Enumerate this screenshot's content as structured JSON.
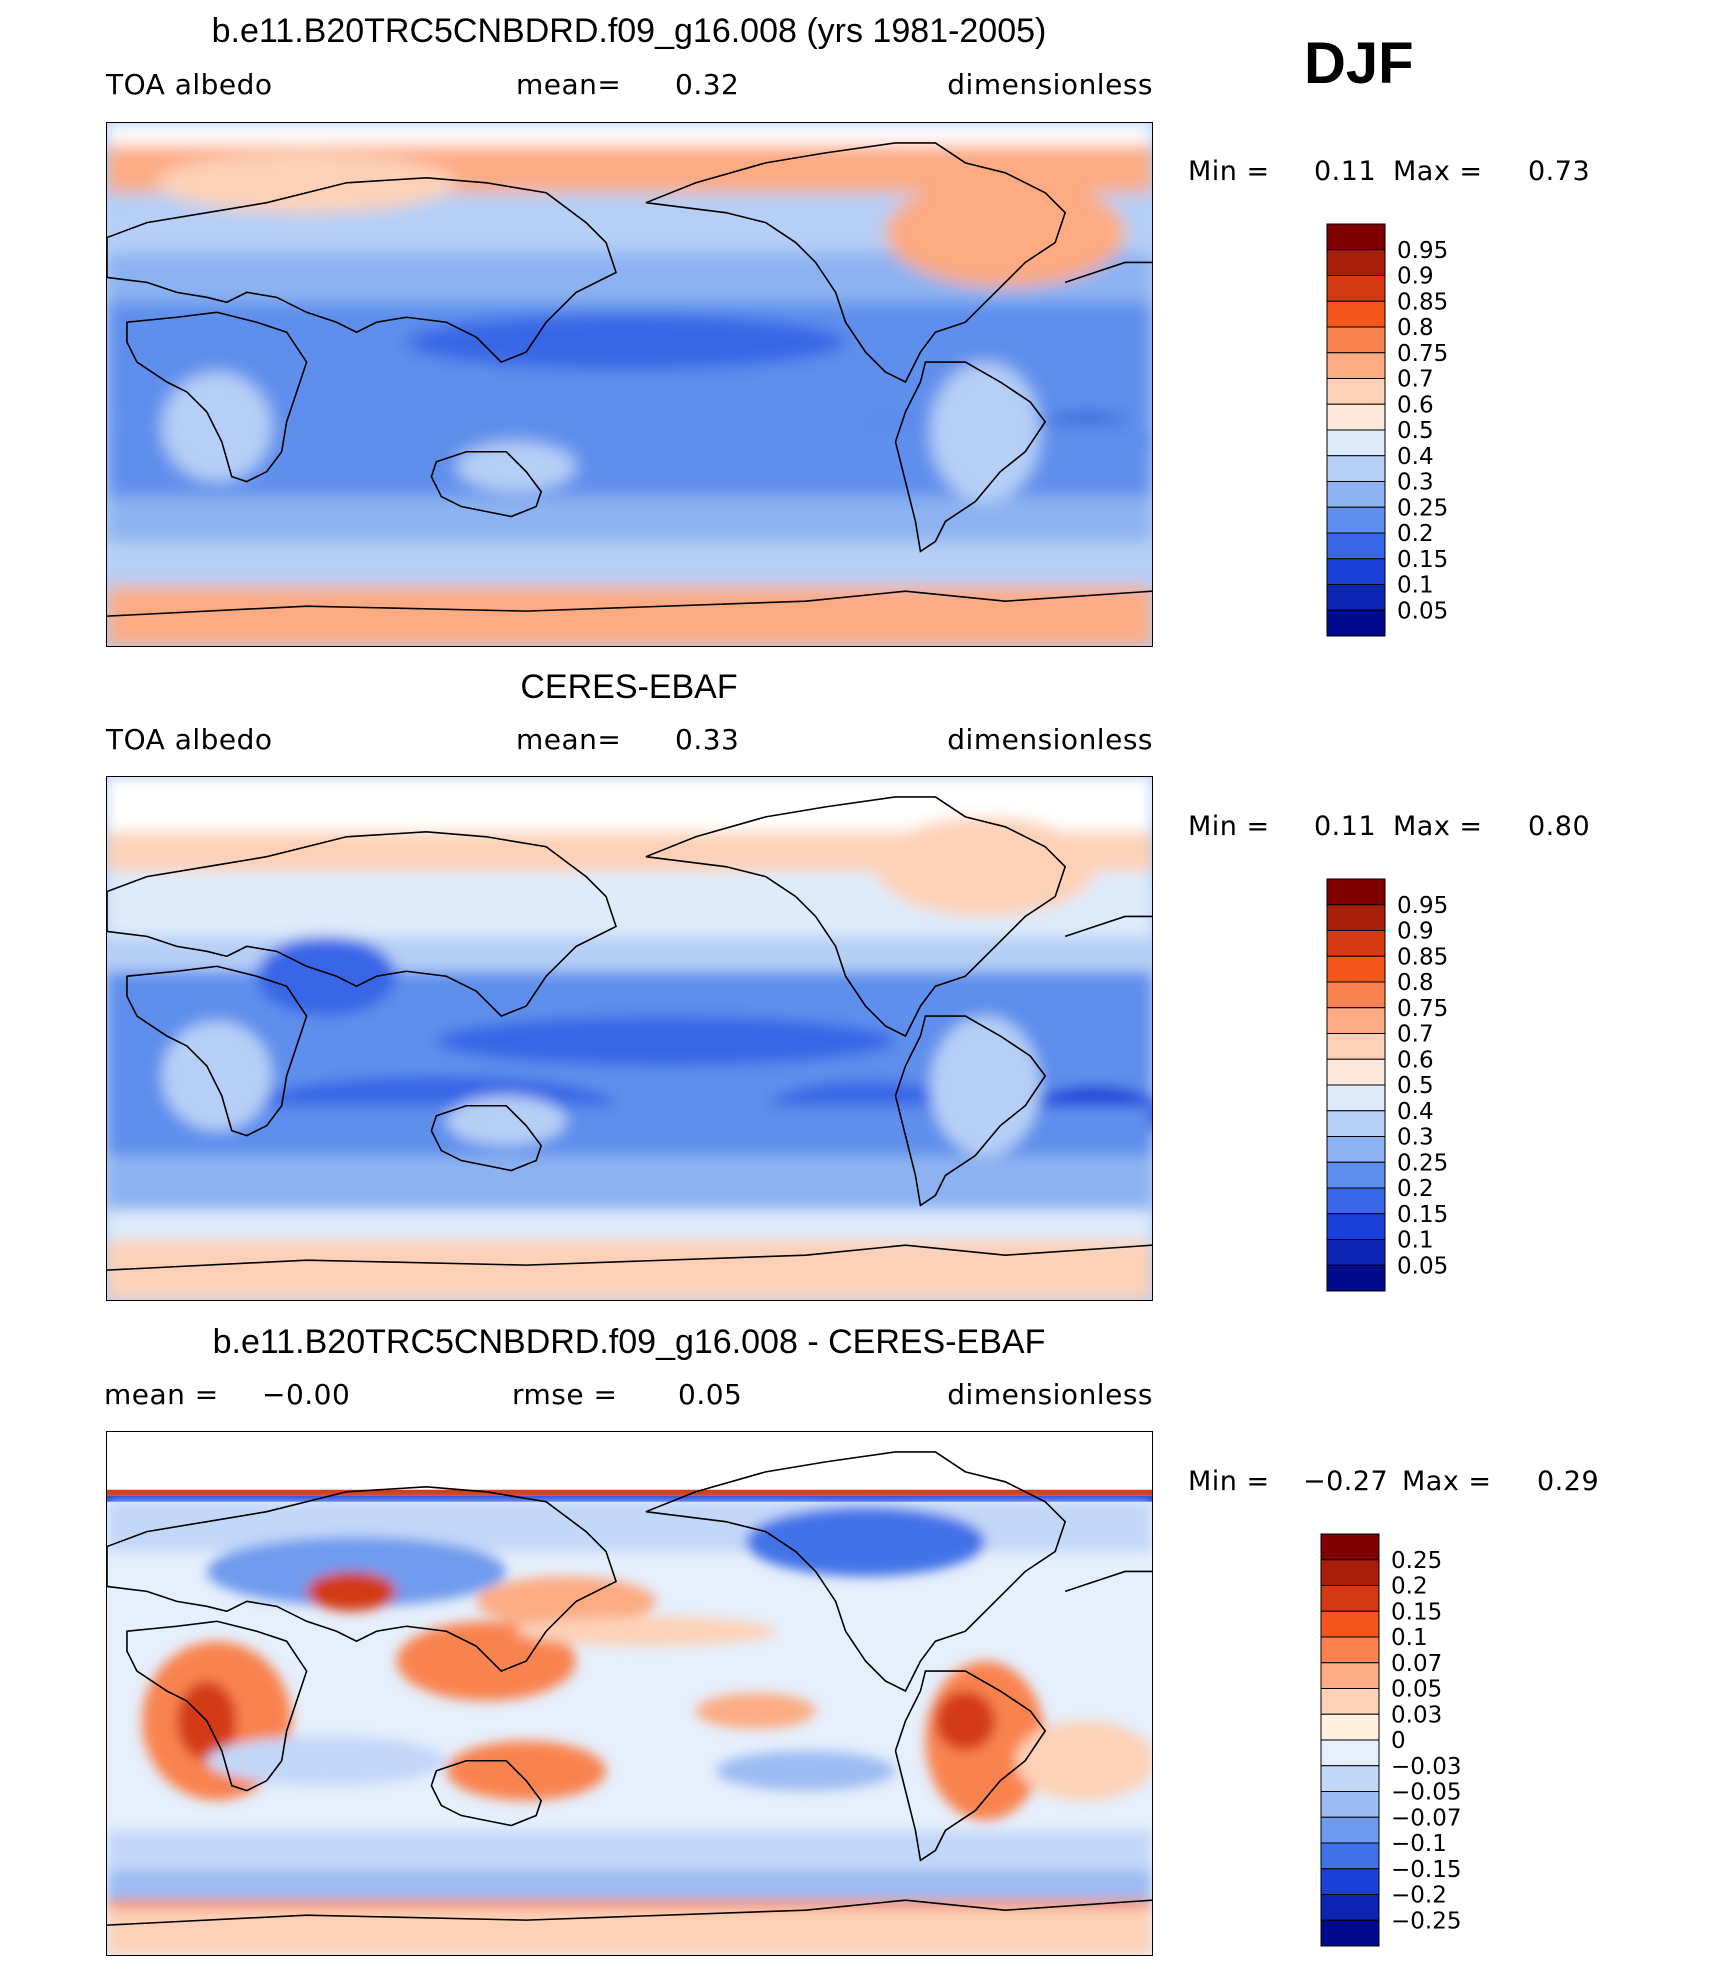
{
  "season_label": "DJF",
  "panels": [
    {
      "id": "model",
      "title": "b.e11.B20TRC5CNBDRD.f09_g16.008 (yrs 1981-2005)",
      "left_label": "TOA albedo",
      "center_label": "mean=",
      "center_value": "0.32",
      "right_label": "dimensionless",
      "min_label": "Min =",
      "min_value": "0.11",
      "max_label": "Max =",
      "max_value": "0.73",
      "colorbar": {
        "ticks": [
          "0.95",
          "0.9",
          "0.85",
          "0.8",
          "0.75",
          "0.7",
          "0.6",
          "0.5",
          "0.4",
          "0.3",
          "0.25",
          "0.2",
          "0.15",
          "0.1",
          "0.05"
        ],
        "colors": [
          "#7f0000",
          "#a81e0a",
          "#d33a12",
          "#f2561a",
          "#f98350",
          "#fcab83",
          "#fdd1b7",
          "#fde9dc",
          "#deebfb",
          "#b6cff6",
          "#8cb2f1",
          "#5e8fec",
          "#3866e6",
          "#1a40d8",
          "#0c24b4",
          "#000a8c"
        ]
      }
    },
    {
      "id": "obs",
      "title": "CERES-EBAF",
      "left_label": "TOA albedo",
      "center_label": "mean=",
      "center_value": "0.33",
      "right_label": "dimensionless",
      "min_label": "Min =",
      "min_value": "0.11",
      "max_label": "Max =",
      "max_value": "0.80",
      "colorbar": {
        "ticks": [
          "0.95",
          "0.9",
          "0.85",
          "0.8",
          "0.75",
          "0.7",
          "0.6",
          "0.5",
          "0.4",
          "0.3",
          "0.25",
          "0.2",
          "0.15",
          "0.1",
          "0.05"
        ],
        "colors": [
          "#7f0000",
          "#a81e0a",
          "#d33a12",
          "#f2561a",
          "#f98350",
          "#fcab83",
          "#fdd1b7",
          "#fde9dc",
          "#deebfb",
          "#b6cff6",
          "#8cb2f1",
          "#5e8fec",
          "#3866e6",
          "#1a40d8",
          "#0c24b4",
          "#000a8c"
        ]
      }
    },
    {
      "id": "diff",
      "title": "b.e11.B20TRC5CNBDRD.f09_g16.008 - CERES-EBAF",
      "left_label": "mean =",
      "left_value": "−0.00",
      "center_label": "rmse =",
      "center_value": "0.05",
      "right_label": "dimensionless",
      "min_label": "Min =",
      "min_value": "−0.27",
      "max_label": "Max =",
      "max_value": "0.29",
      "colorbar": {
        "ticks": [
          "0.25",
          "0.2",
          "0.15",
          "0.1",
          "0.07",
          "0.05",
          "0.03",
          "0",
          "−0.03",
          "−0.05",
          "−0.07",
          "−0.1",
          "−0.15",
          "−0.2",
          "−0.25"
        ],
        "colors": [
          "#7f0000",
          "#a81e0a",
          "#d33a12",
          "#f2561a",
          "#f98350",
          "#fcab83",
          "#fdd1b7",
          "#fff0e0",
          "#e6effc",
          "#c3d7f8",
          "#9dbcf3",
          "#6f9bee",
          "#4272e8",
          "#1a40d8",
          "#0c24b4",
          "#000a8c"
        ]
      }
    }
  ]
}
